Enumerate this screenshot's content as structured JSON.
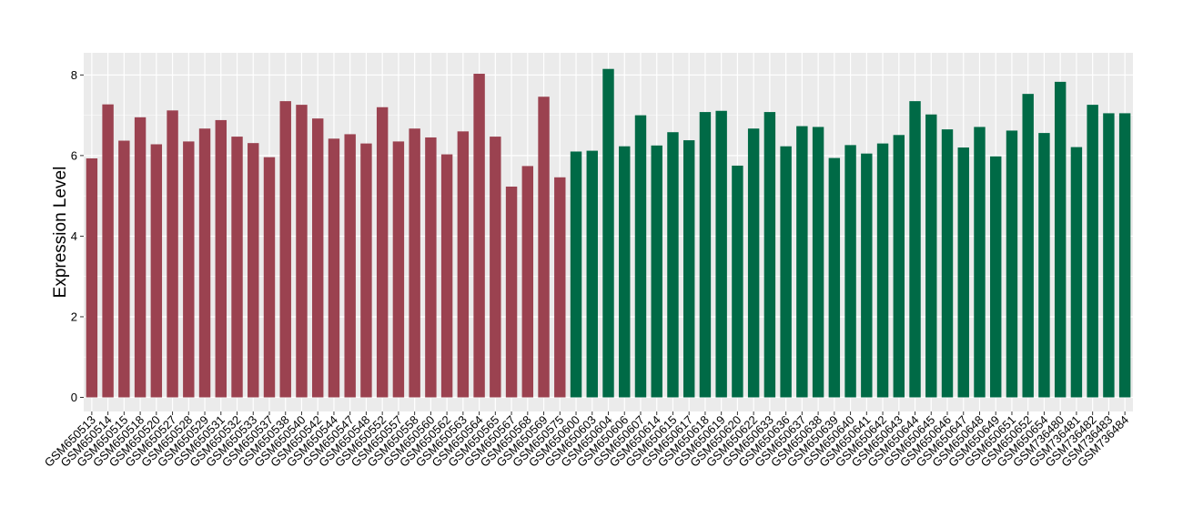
{
  "chart_data": {
    "type": "bar",
    "title": "",
    "xlabel": "",
    "ylabel": "Expression Level",
    "ylim": [
      -0.35,
      8.55
    ],
    "yticks": [
      0,
      2,
      4,
      6,
      8
    ],
    "grid": true,
    "legend": "none",
    "colors": {
      "panel": "#EBEBEB",
      "grid": "#FFFFFF",
      "group1": "#9B4250",
      "group2": "#006A46"
    },
    "categories": [
      "GSM650513",
      "GSM650514",
      "GSM650515",
      "GSM650518",
      "GSM650520",
      "GSM650527",
      "GSM650528",
      "GSM650529",
      "GSM650531",
      "GSM650532",
      "GSM650533",
      "GSM650537",
      "GSM650538",
      "GSM650540",
      "GSM650542",
      "GSM650544",
      "GSM650547",
      "GSM650548",
      "GSM650552",
      "GSM650557",
      "GSM650558",
      "GSM650560",
      "GSM650562",
      "GSM650563",
      "GSM650564",
      "GSM650565",
      "GSM650567",
      "GSM650568",
      "GSM650569",
      "GSM650575",
      "GSM650600",
      "GSM650603",
      "GSM650604",
      "GSM650606",
      "GSM650607",
      "GSM650614",
      "GSM650615",
      "GSM650617",
      "GSM650618",
      "GSM650619",
      "GSM650620",
      "GSM650622",
      "GSM650633",
      "GSM650636",
      "GSM650637",
      "GSM650638",
      "GSM650639",
      "GSM650640",
      "GSM650641",
      "GSM650642",
      "GSM650643",
      "GSM650644",
      "GSM650645",
      "GSM650646",
      "GSM650647",
      "GSM650648",
      "GSM650649",
      "GSM650651",
      "GSM650652",
      "GSM650654",
      "GSM736480",
      "GSM736481",
      "GSM736482",
      "GSM736483",
      "GSM736484"
    ],
    "values": [
      5.93,
      7.27,
      6.37,
      6.95,
      6.28,
      7.12,
      6.35,
      6.67,
      6.88,
      6.47,
      6.31,
      5.96,
      7.35,
      7.26,
      6.92,
      6.42,
      6.53,
      6.3,
      7.2,
      6.35,
      6.67,
      6.45,
      6.03,
      6.6,
      8.03,
      6.47,
      5.23,
      5.74,
      7.46,
      5.46,
      6.1,
      6.12,
      8.15,
      6.23,
      7.0,
      6.25,
      6.58,
      6.38,
      7.08,
      7.11,
      5.75,
      6.67,
      7.08,
      6.23,
      6.73,
      6.71,
      5.94,
      6.26,
      6.05,
      6.3,
      6.51,
      7.35,
      7.02,
      6.65,
      6.2,
      6.71,
      5.98,
      6.62,
      7.53,
      6.56,
      7.83,
      6.21,
      7.26,
      7.05,
      7.05
    ],
    "groups": [
      0,
      0,
      0,
      0,
      0,
      0,
      0,
      0,
      0,
      0,
      0,
      0,
      0,
      0,
      0,
      0,
      0,
      0,
      0,
      0,
      0,
      0,
      0,
      0,
      0,
      0,
      0,
      0,
      0,
      0,
      1,
      1,
      1,
      1,
      1,
      1,
      1,
      1,
      1,
      1,
      1,
      1,
      1,
      1,
      1,
      1,
      1,
      1,
      1,
      1,
      1,
      1,
      1,
      1,
      1,
      1,
      1,
      1,
      1,
      1,
      1,
      1,
      1,
      1,
      1
    ]
  }
}
